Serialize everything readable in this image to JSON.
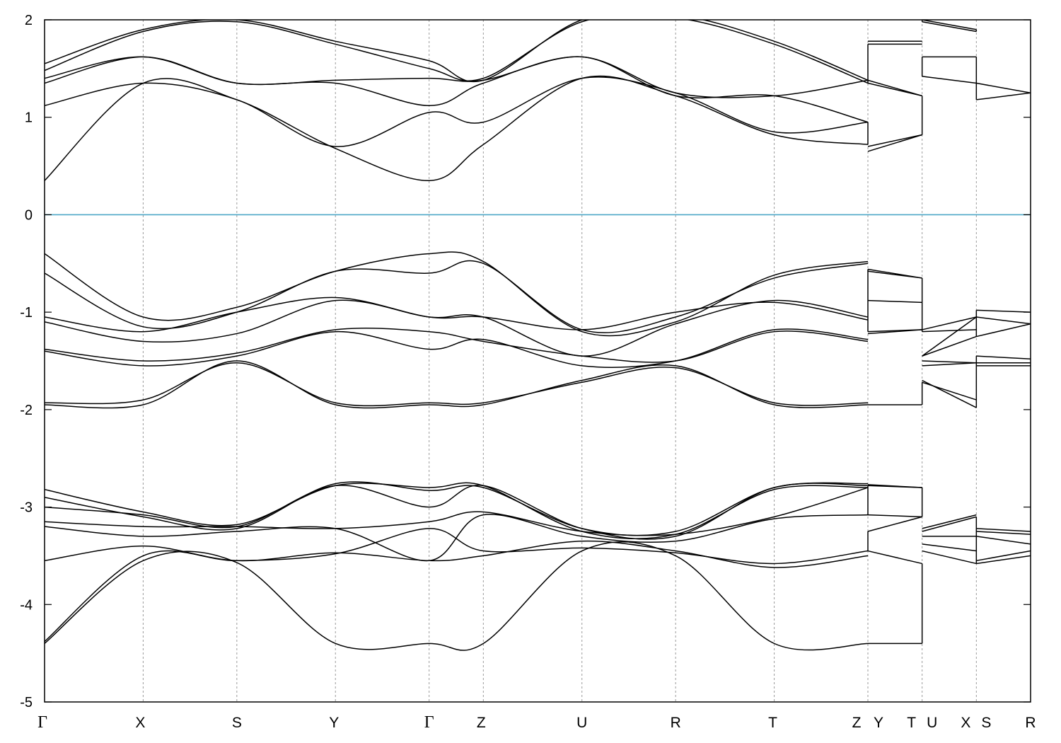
{
  "chart_data": {
    "type": "line",
    "title": "",
    "xlabel": "",
    "ylabel": "",
    "ylim": [
      -5,
      2
    ],
    "yticks": [
      -5,
      -4,
      -3,
      -2,
      -1,
      0,
      1,
      2
    ],
    "grid": "vertical dotted lines at high-symmetry points",
    "fermi_level": {
      "value": 0,
      "color": "#4fa8c8"
    },
    "band_color": "#000000",
    "kpath": [
      {
        "label": "Γ",
        "x": 0.0
      },
      {
        "label": "X",
        "x": 1.0
      },
      {
        "label": "S",
        "x": 1.95
      },
      {
        "label": "Y",
        "x": 2.95
      },
      {
        "label": "Γ",
        "x": 3.9
      },
      {
        "label": "Z",
        "x": 4.45
      },
      {
        "label": "U",
        "x": 5.45
      },
      {
        "label": "R",
        "x": 6.4
      },
      {
        "label": "T",
        "x": 7.4
      },
      {
        "label": "Z",
        "x": 8.35
      },
      {
        "label": "Y",
        "x": 8.35
      },
      {
        "label": "T",
        "x": 8.9
      },
      {
        "label": "U",
        "x": 8.9
      },
      {
        "label": "X",
        "x": 9.45
      },
      {
        "label": "S",
        "x": 9.45
      },
      {
        "label": "R",
        "x": 10.0
      }
    ],
    "kpath_text": {
      "gamma1": "Γ",
      "x1": "X",
      "s1": "S",
      "y1": "Y",
      "gamma2": "Γ",
      "z1": "Z",
      "u1": "U",
      "r1": "R",
      "t1": "T",
      "z2": "Z",
      "y2": "Y",
      "t2": "T",
      "u2": "U",
      "x2": "X",
      "s2": "S",
      "r2": "R"
    },
    "ytick_text": {
      "m5": "-5",
      "m4": "-4",
      "m3": "-3",
      "m2": "-2",
      "m1": "-1",
      "z0": "0",
      "p1": "1",
      "p2": "2"
    },
    "segments": [
      {
        "x": [
          0.0,
          1.0,
          1.95,
          2.95,
          3.9,
          4.45,
          5.45,
          6.4,
          7.4,
          8.35
        ],
        "series": [
          {
            "values": [
              -4.4,
              -3.55,
              -3.57,
              -4.4,
              -4.4,
              -4.4,
              -3.45,
              -3.5,
              -4.4,
              -4.4
            ]
          },
          {
            "values": [
              -4.38,
              -3.5,
              -3.55,
              -3.48,
              -3.22,
              -3.45,
              -3.42,
              -3.47,
              -3.58,
              -3.45
            ]
          },
          {
            "values": [
              -3.55,
              -3.4,
              -3.55,
              -3.47,
              -3.55,
              -3.5,
              -3.35,
              -3.45,
              -3.62,
              -3.5
            ]
          },
          {
            "values": [
              -3.2,
              -3.3,
              -3.25,
              -3.22,
              -3.55,
              -3.08,
              -3.3,
              -3.35,
              -3.12,
              -3.08
            ]
          },
          {
            "values": [
              -3.15,
              -3.2,
              -3.2,
              -3.22,
              -3.15,
              -3.05,
              -3.25,
              -3.28,
              -3.1,
              -2.8
            ]
          },
          {
            "values": [
              -3.0,
              -3.08,
              -3.2,
              -2.78,
              -3.0,
              -2.78,
              -3.22,
              -3.3,
              -2.8,
              -2.78
            ]
          },
          {
            "values": [
              -2.9,
              -3.1,
              -3.22,
              -2.76,
              -2.83,
              -2.8,
              -3.22,
              -3.25,
              -2.8,
              -2.76
            ]
          },
          {
            "values": [
              -2.82,
              -3.05,
              -3.18,
              -2.78,
              -2.8,
              -2.78,
              -3.25,
              -3.28,
              -2.82,
              -2.8
            ]
          },
          {
            "values": [
              -1.95,
              -1.95,
              -1.5,
              -1.95,
              -1.95,
              -1.95,
              -1.7,
              -1.55,
              -1.95,
              -1.95
            ]
          },
          {
            "values": [
              -1.93,
              -1.9,
              -1.52,
              -1.93,
              -1.93,
              -1.93,
              -1.72,
              -1.57,
              -1.93,
              -1.93
            ]
          },
          {
            "values": [
              -1.4,
              -1.55,
              -1.45,
              -1.2,
              -1.38,
              -1.28,
              -1.55,
              -1.5,
              -1.18,
              -1.28
            ]
          },
          {
            "values": [
              -1.38,
              -1.5,
              -1.42,
              -1.18,
              -1.2,
              -1.3,
              -1.45,
              -1.5,
              -1.2,
              -1.3
            ]
          },
          {
            "values": [
              -1.1,
              -1.3,
              -1.22,
              -0.88,
              -1.05,
              -1.05,
              -1.45,
              -1.12,
              -0.88,
              -1.05
            ]
          },
          {
            "values": [
              -1.05,
              -1.2,
              -1.0,
              -0.85,
              -1.05,
              -1.05,
              -1.18,
              -1.0,
              -0.9,
              -1.08
            ]
          },
          {
            "values": [
              -0.6,
              -1.15,
              -1.0,
              -0.58,
              -0.6,
              -0.5,
              -1.18,
              -1.05,
              -0.65,
              -0.5
            ]
          },
          {
            "values": [
              -0.4,
              -1.05,
              -0.95,
              -0.58,
              -0.4,
              -0.48,
              -1.2,
              -1.1,
              -0.62,
              -0.48
            ]
          },
          {
            "values": [
              0.35,
              1.35,
              1.18,
              0.68,
              0.35,
              0.72,
              1.4,
              1.22,
              0.82,
              0.72
            ]
          },
          {
            "values": [
              1.12,
              1.35,
              1.18,
              0.7,
              1.05,
              0.95,
              1.4,
              1.25,
              0.85,
              0.95
            ]
          },
          {
            "values": [
              1.35,
              1.62,
              1.35,
              1.35,
              1.12,
              1.35,
              1.62,
              1.22,
              1.22,
              0.95
            ]
          },
          {
            "values": [
              1.4,
              1.62,
              1.35,
              1.38,
              1.4,
              1.38,
              1.62,
              1.25,
              1.22,
              1.38
            ]
          },
          {
            "values": [
              1.48,
              1.88,
              1.98,
              1.75,
              1.5,
              1.4,
              1.98,
              2.02,
              1.75,
              1.35
            ]
          },
          {
            "values": [
              1.55,
              1.9,
              2.0,
              1.78,
              1.58,
              1.38,
              2.0,
              2.05,
              1.78,
              1.38
            ]
          }
        ]
      },
      {
        "x": [
          8.35,
          8.9
        ],
        "series": [
          {
            "values": [
              -4.4,
              -4.4
            ]
          },
          {
            "values": [
              -3.45,
              -3.58
            ]
          },
          {
            "values": [
              -3.25,
              -3.1
            ]
          },
          {
            "values": [
              -3.08,
              -3.1
            ]
          },
          {
            "values": [
              -2.78,
              -2.8
            ]
          },
          {
            "values": [
              -2.77,
              -2.8
            ]
          },
          {
            "values": [
              -1.95,
              -1.95
            ]
          },
          {
            "values": [
              -1.2,
              -1.18
            ]
          },
          {
            "values": [
              -1.22,
              -1.18
            ]
          },
          {
            "values": [
              -0.88,
              -0.9
            ]
          },
          {
            "values": [
              -0.58,
              -0.65
            ]
          },
          {
            "values": [
              -0.56,
              -0.65
            ]
          },
          {
            "values": [
              0.65,
              0.82
            ]
          },
          {
            "values": [
              0.7,
              0.82
            ]
          },
          {
            "values": [
              1.38,
              1.22
            ]
          },
          {
            "values": [
              1.35,
              1.22
            ]
          },
          {
            "values": [
              1.75,
              1.75
            ]
          },
          {
            "values": [
              1.78,
              1.78
            ]
          }
        ]
      },
      {
        "x": [
          8.9,
          9.45
        ],
        "series": [
          {
            "values": [
              -3.45,
              -3.58
            ]
          },
          {
            "values": [
              -3.38,
              -3.45
            ]
          },
          {
            "values": [
              -3.3,
              -3.3
            ]
          },
          {
            "values": [
              -3.25,
              -3.1
            ]
          },
          {
            "values": [
              -3.22,
              -3.08
            ]
          },
          {
            "values": [
              -1.7,
              -1.98
            ]
          },
          {
            "values": [
              -1.72,
              -1.9
            ]
          },
          {
            "values": [
              -1.55,
              -1.52
            ]
          },
          {
            "values": [
              -1.5,
              -1.52
            ]
          },
          {
            "values": [
              -1.45,
              -1.25
            ]
          },
          {
            "values": [
              -1.45,
              -1.05
            ]
          },
          {
            "values": [
              -1.2,
              -1.18
            ]
          },
          {
            "values": [
              -1.18,
              -1.05
            ]
          },
          {
            "values": [
              1.42,
              1.35
            ]
          },
          {
            "values": [
              1.62,
              1.62
            ]
          },
          {
            "values": [
              1.98,
              1.88
            ]
          },
          {
            "values": [
              2.0,
              1.9
            ]
          }
        ]
      },
      {
        "x": [
          9.45,
          10.0
        ],
        "series": [
          {
            "values": [
              -3.58,
              -3.5
            ]
          },
          {
            "values": [
              -3.55,
              -3.45
            ]
          },
          {
            "values": [
              -3.3,
              -3.38
            ]
          },
          {
            "values": [
              -3.25,
              -3.28
            ]
          },
          {
            "values": [
              -3.22,
              -3.25
            ]
          },
          {
            "values": [
              -1.55,
              -1.55
            ]
          },
          {
            "values": [
              -1.52,
              -1.52
            ]
          },
          {
            "values": [
              -1.45,
              -1.48
            ]
          },
          {
            "values": [
              -1.25,
              -1.12
            ]
          },
          {
            "values": [
              -1.05,
              -1.12
            ]
          },
          {
            "values": [
              -0.98,
              -1.0
            ]
          },
          {
            "values": [
              1.18,
              1.25
            ]
          },
          {
            "values": [
              1.35,
              1.25
            ]
          }
        ]
      }
    ],
    "jumps": [
      {
        "x": 8.35,
        "ranges": [
          [
            -3.45,
            -3.25
          ],
          [
            -3.08,
            -2.78
          ],
          [
            -1.2,
            -0.88
          ],
          [
            -0.88,
            -0.56
          ],
          [
            0.72,
            0.95
          ],
          [
            1.35,
            1.75
          ]
        ]
      },
      {
        "x": 8.9,
        "ranges": [
          [
            -4.4,
            -3.58
          ],
          [
            -3.1,
            -2.8
          ],
          [
            -1.95,
            -1.72
          ],
          [
            -1.2,
            -0.65
          ],
          [
            0.82,
            1.22
          ],
          [
            1.42,
            1.62
          ],
          [
            1.98,
            2.0
          ]
        ]
      },
      {
        "x": 9.45,
        "ranges": [
          [
            -3.58,
            -3.1
          ],
          [
            -1.98,
            -1.45
          ],
          [
            -1.25,
            -0.98
          ],
          [
            1.18,
            1.62
          ],
          [
            1.88,
            1.9
          ]
        ]
      }
    ]
  }
}
